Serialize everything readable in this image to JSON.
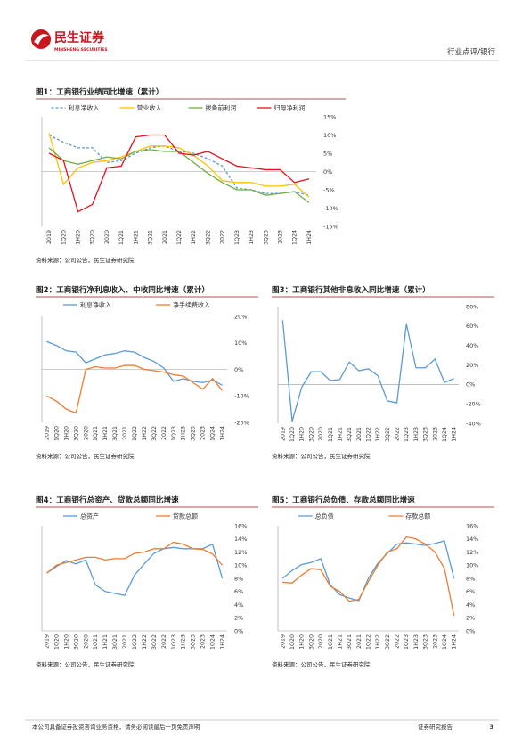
{
  "header": {
    "logo_cn": "民生证券",
    "logo_en": "MINSHENG SECURITIES",
    "section": "行业点评/银行"
  },
  "footer": {
    "disclaimer": "本公司具备证券投资咨询业务资格，请务必阅读最后一页免责声明",
    "report_type": "证券研究报告",
    "page": "3"
  },
  "chart_data": [
    {
      "type": "line",
      "title": "图1：工商银行业绩同比增速（累计）",
      "source": "资料来源：公司公告，民生证券研究院",
      "legend": "top",
      "categories": [
        "2019",
        "1Q20",
        "1H20",
        "3Q20",
        "2020",
        "1Q21",
        "1H21",
        "3Q21",
        "2021",
        "1Q22",
        "1H22",
        "3Q22",
        "2022",
        "1Q23",
        "1H23",
        "3Q23",
        "2023",
        "1Q24",
        "1H24"
      ],
      "ylim": [
        -15,
        15
      ],
      "yticks": [
        {
          "value": 15,
          "label": "15%"
        },
        {
          "value": 10,
          "label": "10%"
        },
        {
          "value": 5,
          "label": "5%"
        },
        {
          "value": 0,
          "label": "0%"
        },
        {
          "value": -5,
          "label": "-5%"
        },
        {
          "value": -10,
          "label": "-10%"
        },
        {
          "value": -15,
          "label": "-15%"
        }
      ],
      "series": [
        {
          "name": "利息净收入",
          "color": "#5b9bd5",
          "dash": true,
          "values": [
            10,
            8,
            6.5,
            6.5,
            2.5,
            3,
            5,
            6.5,
            7,
            5.5,
            5,
            3.5,
            1.5,
            -4.5,
            -5,
            -6,
            -6,
            -5.5,
            -6.5
          ]
        },
        {
          "name": "营业收入",
          "color": "#ffc000",
          "values": [
            10.5,
            -3.5,
            1,
            2.5,
            3,
            4,
            5.5,
            7,
            7,
            6.5,
            4.5,
            1.5,
            -2.5,
            -3,
            -3,
            -4,
            -4,
            -3.5,
            -7
          ]
        },
        {
          "name": "拨备前利润",
          "color": "#70ad47",
          "values": [
            6.5,
            3,
            2,
            3,
            4,
            3.5,
            5.5,
            6,
            5.5,
            5.5,
            2.5,
            -0.5,
            -3,
            -5,
            -5,
            -6.5,
            -6,
            -5.5,
            -8.5
          ]
        },
        {
          "name": "归母净利润",
          "color": "#e8101c",
          "values": [
            5,
            3,
            -11,
            -9,
            1,
            1.5,
            9.5,
            10,
            10,
            5,
            4.5,
            5.5,
            3.5,
            1.5,
            1,
            0.5,
            0.5,
            -3,
            -2
          ]
        }
      ]
    },
    {
      "type": "line",
      "title": "图2：工商银行净利息收入、中收同比增速（累计）",
      "source": "资料来源：公司公告，民生证券研究院",
      "legend": "top",
      "categories": [
        "2019",
        "1Q20",
        "1H20",
        "3Q20",
        "2020",
        "1Q21",
        "1H21",
        "3Q21",
        "2021",
        "1Q22",
        "1H22",
        "3Q22",
        "2022",
        "1Q23",
        "1H23",
        "3Q23",
        "2023",
        "1Q24",
        "1H24"
      ],
      "ylim": [
        -20,
        20
      ],
      "yticks": [
        {
          "value": 20,
          "label": "20%"
        },
        {
          "value": 10,
          "label": "10%"
        },
        {
          "value": 0,
          "label": "0%"
        },
        {
          "value": -10,
          "label": "-10%"
        },
        {
          "value": -20,
          "label": "-20%"
        }
      ],
      "series": [
        {
          "name": "利息净收入",
          "color": "#5b9bd5",
          "values": [
            10.5,
            9,
            7,
            6.5,
            2.5,
            4,
            5.5,
            6,
            7,
            6.5,
            4.5,
            3,
            0.5,
            -4.5,
            -3.5,
            -4.5,
            -5,
            -4,
            -6
          ]
        },
        {
          "name": "净手续费收入",
          "color": "#ed7d31",
          "values": [
            -10,
            -12,
            -15,
            -16.5,
            0,
            1,
            0.5,
            0.5,
            1.5,
            1.5,
            0,
            -0.5,
            -1,
            -2,
            -2.5,
            -5,
            -7.5,
            -3.5,
            -8
          ]
        }
      ]
    },
    {
      "type": "line",
      "title": "图3：工商银行其他非息收入同比增速（累计）",
      "source": "资料来源：公司公告，民生证券研究院",
      "categories": [
        "2019",
        "1Q20",
        "1H20",
        "3Q20",
        "2020",
        "1Q21",
        "1H21",
        "3Q21",
        "2021",
        "1Q22",
        "1H22",
        "3Q22",
        "2022",
        "1Q23",
        "1H23",
        "3Q23",
        "2023",
        "1Q24",
        "1H24"
      ],
      "ylim": [
        -40,
        80
      ],
      "yticks": [
        {
          "value": 80,
          "label": "80%"
        },
        {
          "value": 60,
          "label": "60%"
        },
        {
          "value": 40,
          "label": "40%"
        },
        {
          "value": 20,
          "label": "20%"
        },
        {
          "value": 0,
          "label": "0%"
        },
        {
          "value": -20,
          "label": "-20%"
        },
        {
          "value": -40,
          "label": "-40%"
        }
      ],
      "series": [
        {
          "color": "#5b9bd5",
          "values": [
            66,
            -38,
            -3,
            13,
            13,
            4,
            5,
            23,
            14,
            16,
            9,
            -17,
            -19,
            62,
            17,
            17,
            26,
            2,
            6
          ]
        }
      ]
    },
    {
      "type": "line",
      "title": "图4：工商银行总资产、贷款总额同比增速",
      "source": "资料来源：公司公告，民生证券研究院",
      "legend": "top",
      "categories": [
        "2019",
        "1Q20",
        "1H20",
        "3Q20",
        "2020",
        "1Q21",
        "1H21",
        "3Q21",
        "2021",
        "1Q22",
        "1H22",
        "3Q22",
        "2022",
        "1Q23",
        "1H23",
        "3Q23",
        "2023",
        "1Q24",
        "1H24"
      ],
      "ylim": [
        0,
        16
      ],
      "yticks": [
        {
          "value": 16,
          "label": "16%"
        },
        {
          "value": 14,
          "label": "14%"
        },
        {
          "value": 12,
          "label": "12%"
        },
        {
          "value": 10,
          "label": "10%"
        },
        {
          "value": 8,
          "label": "8%"
        },
        {
          "value": 6,
          "label": "6%"
        },
        {
          "value": 4,
          "label": "4%"
        },
        {
          "value": 2,
          "label": "2%"
        },
        {
          "value": 0,
          "label": "0%"
        }
      ],
      "series": [
        {
          "name": "总资产",
          "color": "#5b9bd5",
          "values": [
            8.8,
            9.8,
            10.7,
            10.2,
            10.8,
            7,
            6,
            5.7,
            5.4,
            8.5,
            10.2,
            11.8,
            12.5,
            12.7,
            12.5,
            12.5,
            12.5,
            13.2,
            8
          ]
        },
        {
          "name": "贷款总额",
          "color": "#ed7d31",
          "values": [
            8.8,
            10,
            10.4,
            10.8,
            11.2,
            11.2,
            10.8,
            11,
            11,
            11.8,
            12,
            12.5,
            12.5,
            13.5,
            13.2,
            12.5,
            12.4,
            11.7,
            10
          ]
        }
      ]
    },
    {
      "type": "line",
      "title": "图5：工商银行总负债、存款总额同比增速",
      "source": "资料来源：公司公告，民生证券研究院",
      "legend": "top",
      "categories": [
        "2019",
        "1Q20",
        "1H20",
        "3Q20",
        "2020",
        "1Q21",
        "1H21",
        "3Q21",
        "2021",
        "1Q22",
        "1H22",
        "3Q22",
        "2022",
        "1Q23",
        "1H23",
        "3Q23",
        "2023",
        "1Q24",
        "1H24"
      ],
      "ylim": [
        0,
        16
      ],
      "yticks": [
        {
          "value": 16,
          "label": "16%"
        },
        {
          "value": 14,
          "label": "14%"
        },
        {
          "value": 12,
          "label": "12%"
        },
        {
          "value": 10,
          "label": "10%"
        },
        {
          "value": 8,
          "label": "8%"
        },
        {
          "value": 6,
          "label": "6%"
        },
        {
          "value": 4,
          "label": "4%"
        },
        {
          "value": 2,
          "label": "2%"
        },
        {
          "value": 0,
          "label": "0%"
        }
      ],
      "series": [
        {
          "name": "总负债",
          "color": "#5b9bd5",
          "values": [
            8,
            9.2,
            10.1,
            10.4,
            11,
            7,
            5.5,
            5,
            4.6,
            8,
            10.3,
            11.8,
            13.2,
            13.4,
            13.2,
            13,
            13.3,
            13.7,
            8
          ]
        },
        {
          "name": "存款总额",
          "color": "#ed7d31",
          "values": [
            7.4,
            7.3,
            8.5,
            9.5,
            9.3,
            6.8,
            6,
            4.5,
            4.8,
            7.5,
            10,
            12,
            12.5,
            14.3,
            14,
            13.2,
            12,
            9.5,
            2.3
          ]
        }
      ]
    }
  ]
}
